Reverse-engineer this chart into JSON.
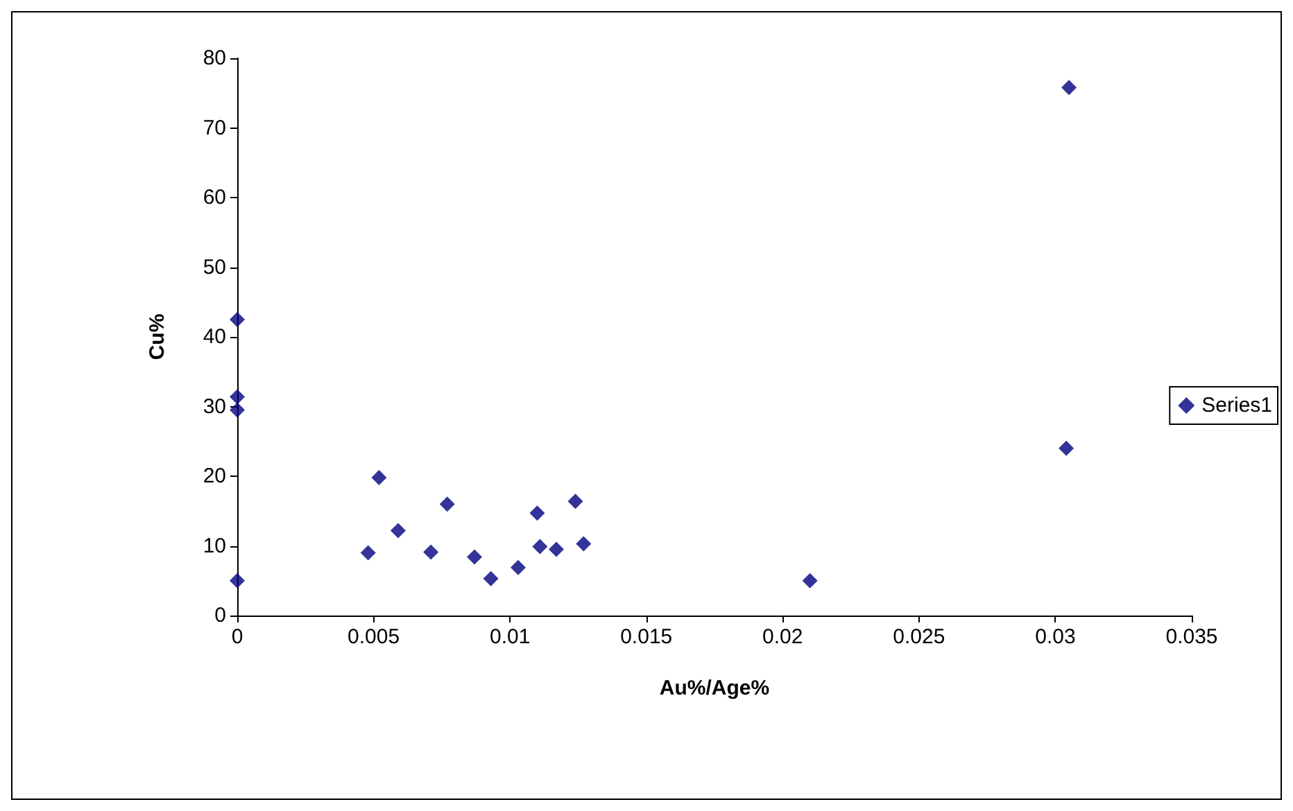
{
  "chart_data": {
    "type": "scatter",
    "xlabel": "Au%/Age%",
    "ylabel": "Cu%",
    "x": [
      0,
      0,
      0,
      0,
      0.0048,
      0.0052,
      0.0059,
      0.0071,
      0.0077,
      0.0087,
      0.0093,
      0.0103,
      0.011,
      0.0111,
      0.0117,
      0.0124,
      0.0127,
      0.021,
      0.0305,
      0.0304
    ],
    "series": [
      {
        "name": "Series1",
        "color": "#000080",
        "values": [
          42.5,
          31.4,
          29.5,
          5.0,
          9.0,
          19.8,
          12.2,
          9.1,
          16.0,
          8.4,
          5.3,
          6.9,
          14.7,
          9.9,
          9.5,
          16.4,
          10.3,
          5.0,
          75.8,
          24.0
        ]
      }
    ],
    "xlim": [
      0,
      0.035
    ],
    "xticks": [
      0,
      0.005,
      0.01,
      0.015,
      0.02,
      0.025,
      0.03,
      0.035
    ],
    "ylim": [
      0,
      80
    ],
    "yticks": [
      0,
      10,
      20,
      30,
      40,
      50,
      60,
      70,
      80
    ],
    "grid": false,
    "legend": "right",
    "marker": "diamond"
  }
}
